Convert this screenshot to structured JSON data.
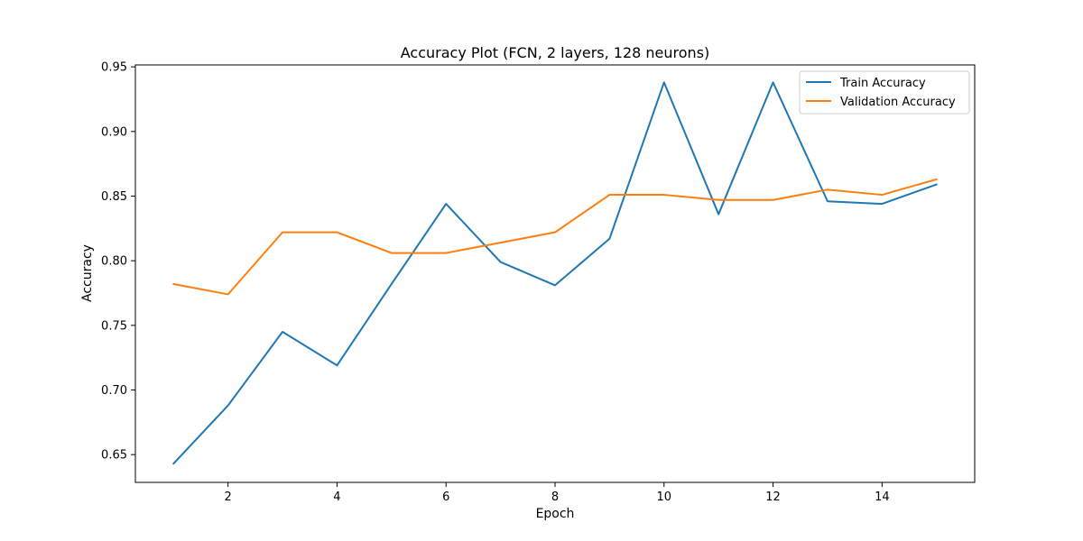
{
  "chart_data": {
    "type": "line",
    "title": "Accuracy Plot (FCN, 2 layers, 128 neurons)",
    "xlabel": "Epoch",
    "ylabel": "Accuracy",
    "xlim": [
      0.3,
      15.7
    ],
    "ylim": [
      0.6285,
      0.9515
    ],
    "xticks": [
      2,
      4,
      6,
      8,
      10,
      12,
      14
    ],
    "yticks": [
      0.65,
      0.7,
      0.75,
      0.8,
      0.85,
      0.9,
      0.95
    ],
    "grid": false,
    "legend_position": "top-right",
    "x": [
      1,
      2,
      3,
      4,
      5,
      6,
      7,
      8,
      9,
      10,
      11,
      12,
      13,
      14,
      15
    ],
    "series": [
      {
        "name": "Train Accuracy",
        "color": "#1f77b4",
        "values": [
          0.643,
          0.688,
          0.745,
          0.719,
          0.782,
          0.844,
          0.799,
          0.781,
          0.817,
          0.938,
          0.836,
          0.938,
          0.846,
          0.844,
          0.859
        ]
      },
      {
        "name": "Validation Accuracy",
        "color": "#ff7f0e",
        "values": [
          0.782,
          0.774,
          0.822,
          0.822,
          0.806,
          0.806,
          0.814,
          0.822,
          0.851,
          0.851,
          0.847,
          0.847,
          0.855,
          0.851,
          0.863
        ]
      }
    ]
  }
}
